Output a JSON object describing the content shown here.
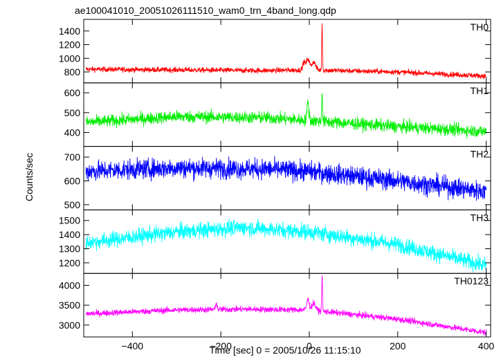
{
  "chart_data": {
    "type": "line",
    "title": "ae100041010_20051026111510_wam0_trn_4band_long.qdp",
    "xlabel": "Time [sec] 0 = 2005/10/26 11:15:10",
    "ylabel": "Counts/sec",
    "xlim": [
      -510,
      410
    ],
    "x_ticks": [
      -400,
      -200,
      0,
      200,
      400
    ],
    "panels": [
      {
        "name": "TH0",
        "color": "#ff0000",
        "ylim": [
          640,
          1570
        ],
        "y_ticks": [
          800,
          1000,
          1200,
          1400
        ],
        "baseline": [
          [
            -510,
            840
          ],
          [
            -300,
            830
          ],
          [
            -100,
            820
          ],
          [
            0,
            830
          ],
          [
            200,
            800
          ],
          [
            400,
            740
          ]
        ],
        "noise": 28,
        "features": [
          [
            -12,
            110,
            4
          ],
          [
            -3,
            160,
            5
          ],
          [
            10,
            120,
            6
          ],
          [
            29,
            700,
            1.2
          ]
        ]
      },
      {
        "name": "TH1",
        "color": "#00ee00",
        "ylim": [
          330,
          650
        ],
        "y_ticks": [
          400,
          500,
          600
        ],
        "baseline": [
          [
            -510,
            450
          ],
          [
            -300,
            480
          ],
          [
            -100,
            475
          ],
          [
            0,
            460
          ],
          [
            200,
            430
          ],
          [
            400,
            405
          ]
        ],
        "noise": 22,
        "features": [
          [
            -3,
            90,
            3
          ],
          [
            29,
            160,
            1.2
          ]
        ]
      },
      {
        "name": "TH2",
        "color": "#0000ff",
        "ylim": [
          478,
          745
        ],
        "y_ticks": [
          500,
          600,
          700
        ],
        "baseline": [
          [
            -510,
            640
          ],
          [
            -300,
            655
          ],
          [
            -100,
            650
          ],
          [
            0,
            640
          ],
          [
            200,
            600
          ],
          [
            400,
            555
          ]
        ],
        "noise": 30,
        "features": []
      },
      {
        "name": "TH3",
        "color": "#00ffff",
        "ylim": [
          1125,
          1575
        ],
        "y_ticks": [
          1200,
          1300,
          1400,
          1500
        ],
        "baseline": [
          [
            -510,
            1340
          ],
          [
            -300,
            1420
          ],
          [
            -150,
            1450
          ],
          [
            0,
            1420
          ],
          [
            200,
            1330
          ],
          [
            400,
            1180
          ]
        ],
        "noise": 40,
        "features": []
      },
      {
        "name": "TH0123",
        "color": "#ff00ff",
        "ylim": [
          2700,
          4300
        ],
        "y_ticks": [
          3000,
          3500,
          4000
        ],
        "baseline": [
          [
            -510,
            3280
          ],
          [
            -300,
            3380
          ],
          [
            -150,
            3400
          ],
          [
            0,
            3380
          ],
          [
            200,
            3150
          ],
          [
            400,
            2810
          ]
        ],
        "noise": 55,
        "features": [
          [
            -210,
            180,
            2
          ],
          [
            -3,
            260,
            4
          ],
          [
            10,
            180,
            6
          ],
          [
            29,
            950,
            1.2
          ]
        ]
      }
    ]
  }
}
